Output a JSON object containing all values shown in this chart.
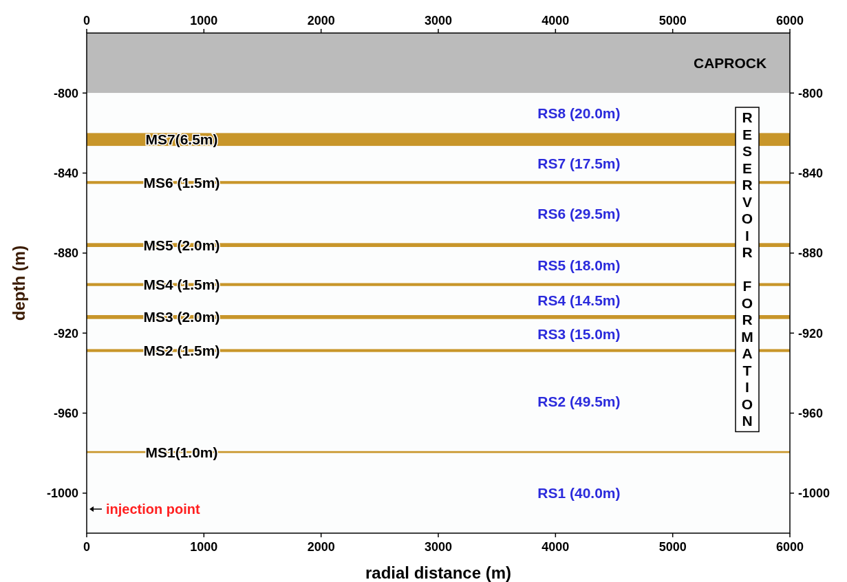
{
  "chart_data": {
    "type": "line",
    "xlabel": "radial distance (m)",
    "ylabel": "depth (m)",
    "xlim": [
      0,
      6000
    ],
    "xticks": [
      0,
      1000,
      2000,
      3000,
      4000,
      5000,
      6000
    ],
    "x2lim": [
      0,
      6000
    ],
    "x2ticks": [
      0,
      1000,
      2000,
      3000,
      4000,
      5000,
      6000
    ],
    "ylim": [
      -1020,
      -770
    ],
    "yticks": [
      -800,
      -840,
      -880,
      -920,
      -960,
      -1000
    ],
    "y2lim": [
      -1020,
      -770
    ],
    "y2ticks": [
      -800,
      -840,
      -880,
      -920,
      -960,
      -1000
    ],
    "bands": [
      {
        "axis": "y",
        "from": -800,
        "to": -770,
        "label": "CAPROCK",
        "color": "#bbbbbb"
      },
      {
        "axis": "y",
        "from": -820,
        "to": -800,
        "label": "RS8 (20.0m)",
        "color": "#fcfdfd"
      },
      {
        "axis": "y",
        "from": -826.5,
        "to": -820,
        "label": "MS7(6.5m)",
        "color": "#c8962a"
      },
      {
        "axis": "y",
        "from": -844,
        "to": -826.5,
        "label": "RS7 (17.5m)",
        "color": "#fcfdfd"
      },
      {
        "axis": "y",
        "from": -845.5,
        "to": -844,
        "label": "MS6 (1.5m)",
        "color": "#c8962a"
      },
      {
        "axis": "y",
        "from": -875,
        "to": -845.5,
        "label": "RS6 (29.5m)",
        "color": "#fcfdfd"
      },
      {
        "axis": "y",
        "from": -877,
        "to": -875,
        "label": "MS5 (2.0m)",
        "color": "#c8962a"
      },
      {
        "axis": "y",
        "from": -895,
        "to": -877,
        "label": "RS5 (18.0m)",
        "color": "#fcfdfd"
      },
      {
        "axis": "y",
        "from": -896.5,
        "to": -895,
        "label": "MS4 (1.5m)",
        "color": "#c8962a"
      },
      {
        "axis": "y",
        "from": -911,
        "to": -896.5,
        "label": "RS4 (14.5m)",
        "color": "#fcfdfd"
      },
      {
        "axis": "y",
        "from": -913,
        "to": -911,
        "label": "MS3 (2.0m)",
        "color": "#c8962a"
      },
      {
        "axis": "y",
        "from": -928,
        "to": -913,
        "label": "RS3 (15.0m)",
        "color": "#fcfdfd"
      },
      {
        "axis": "y",
        "from": -929.5,
        "to": -928,
        "label": "MS2 (1.5m)",
        "color": "#c8962a"
      },
      {
        "axis": "y",
        "from": -979,
        "to": -929.5,
        "label": "RS2 (49.5m)",
        "color": "#fcfdfd"
      },
      {
        "axis": "y",
        "from": -980,
        "to": -979,
        "label": "MS1(1.0m)",
        "color": "#c8962a"
      },
      {
        "axis": "y",
        "from": -1020,
        "to": -980,
        "label": "RS1 (40.0m)",
        "color": "#fcfdfd"
      }
    ],
    "annotations": [
      "injection point",
      "RESERVOIR FORMATION"
    ]
  }
}
